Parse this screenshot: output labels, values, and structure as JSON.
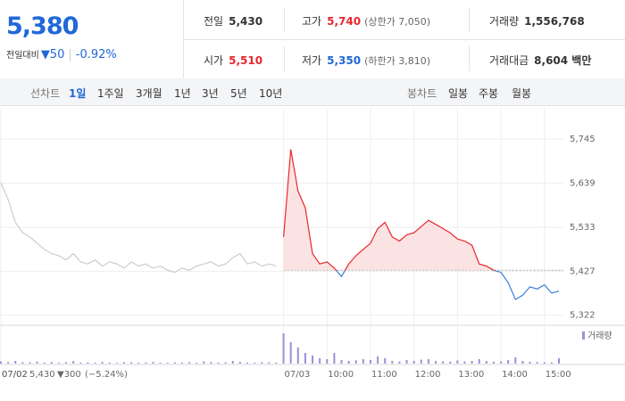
{
  "quote": {
    "price": "5,380",
    "change_label": "전일대비",
    "change": "▼50",
    "change_rate": "-0.92%"
  },
  "summary": [
    {
      "label": "전일",
      "value": "5,430"
    },
    {
      "label": "고가",
      "value": "5,740",
      "note": "(상한가 7,050)"
    },
    {
      "label": "거래량",
      "value": "1,556,768"
    },
    {
      "label": "시가",
      "value": "5,510"
    },
    {
      "label": "저가",
      "value": "5,350",
      "note": "(하한가 3,810)"
    },
    {
      "label": "거래대금",
      "value": "8,604 백만"
    }
  ],
  "tabs": {
    "line_label": "선차트",
    "line": [
      "1일",
      "1주일",
      "3개월",
      "1년",
      "3년",
      "5년",
      "10년"
    ],
    "selected": 0,
    "candle_label": "봉차트",
    "candle": [
      "일봉",
      "주봉",
      "월봉"
    ]
  },
  "chart_data": {
    "type": "line",
    "categories": [
      "07/02",
      null,
      null,
      null,
      null,
      null,
      null,
      null,
      null,
      null,
      null,
      null,
      null,
      null,
      null,
      null,
      null,
      null,
      null,
      null,
      null,
      null,
      null,
      null,
      null,
      null,
      null,
      null,
      null,
      null,
      null,
      null,
      null,
      null,
      null,
      null,
      null,
      null,
      null,
      "07/03",
      null,
      null,
      null,
      null,
      null,
      "10:00",
      null,
      null,
      null,
      null,
      null,
      "11:00",
      null,
      null,
      null,
      null,
      null,
      "12:00",
      null,
      null,
      null,
      null,
      null,
      "13:00",
      null,
      null,
      null,
      null,
      null,
      "14:00",
      null,
      null,
      null,
      null,
      null,
      "15:00",
      null,
      null
    ],
    "series": [
      {
        "color": "#cccccc",
        "values": [
          5640,
          5600,
          5545,
          5520,
          5510,
          5495,
          5480,
          5470,
          5465,
          5455,
          5470,
          5450,
          5445,
          5455,
          5440,
          5450,
          5445,
          5435,
          5450,
          5440,
          5445,
          5435,
          5440,
          5430,
          5425,
          5435,
          5430,
          5440,
          5445,
          5450,
          5440,
          5445,
          5460,
          5470,
          5445,
          5450,
          5440,
          5445,
          5440,
          null,
          null,
          null,
          null,
          null,
          null,
          null,
          null,
          null,
          null,
          null,
          null,
          null,
          null,
          null,
          null,
          null,
          null,
          null,
          null,
          null,
          null,
          null,
          null,
          null,
          null,
          null,
          null,
          null,
          null,
          null,
          null,
          null,
          null,
          null,
          null,
          null,
          null,
          null
        ]
      },
      {
        "color": "#e8262c",
        "color_below": "#3b7ddd",
        "fill": "#fbdcdc",
        "values": [
          null,
          null,
          null,
          null,
          null,
          null,
          null,
          null,
          null,
          null,
          null,
          null,
          null,
          null,
          null,
          null,
          null,
          null,
          null,
          null,
          null,
          null,
          null,
          null,
          null,
          null,
          null,
          null,
          null,
          null,
          null,
          null,
          null,
          null,
          null,
          null,
          null,
          null,
          null,
          5510,
          5720,
          5620,
          5580,
          5470,
          5445,
          5450,
          5435,
          5415,
          5445,
          5465,
          5480,
          5495,
          5530,
          5545,
          5510,
          5500,
          5515,
          5520,
          5535,
          5550,
          5540,
          5530,
          5520,
          5505,
          5500,
          5490,
          5445,
          5440,
          5430,
          5425,
          5400,
          5360,
          5370,
          5390,
          5385,
          5395,
          5375,
          5380
        ]
      },
      {
        "name": "거래량",
        "type": "bar",
        "axis": "y2",
        "color": "#9c8fd8",
        "values": [
          12000,
          9000,
          15000,
          8000,
          7000,
          11000,
          6000,
          9000,
          5000,
          8000,
          14000,
          6000,
          7000,
          5000,
          9000,
          6000,
          4000,
          8000,
          7000,
          5000,
          6000,
          9000,
          5000,
          4000,
          7000,
          6000,
          8000,
          5000,
          12000,
          9000,
          6000,
          7000,
          15000,
          10000,
          6000,
          5000,
          8000,
          7000,
          6000,
          170000,
          120000,
          90000,
          60000,
          45000,
          30000,
          25000,
          60000,
          20000,
          15000,
          18000,
          25000,
          20000,
          40000,
          30000,
          15000,
          12000,
          20000,
          15000,
          22000,
          25000,
          14000,
          12000,
          10000,
          18000,
          12000,
          15000,
          25000,
          14000,
          10000,
          12000,
          20000,
          35000,
          15000,
          10000,
          9000,
          8000,
          7000,
          30000
        ]
      }
    ],
    "baseline": 5430,
    "ylim": [
      5300,
      5820
    ],
    "yticks": [
      {
        "value": 5745,
        "label": "5,745"
      },
      {
        "value": 5639,
        "label": "5,639"
      },
      {
        "value": 5533,
        "label": "5,533"
      },
      {
        "value": 5427,
        "label": "5,427"
      },
      {
        "value": 5322,
        "label": "5,322"
      }
    ],
    "y2lim": [
      0,
      200000
    ],
    "grid": true
  },
  "footer": {
    "date": "07/02",
    "close": "5,430",
    "change": "▼300",
    "rate": "(−5.24%)"
  }
}
